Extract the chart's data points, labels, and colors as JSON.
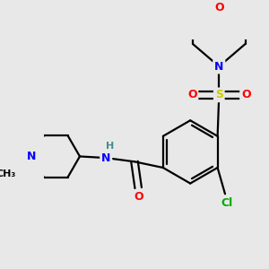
{
  "background_color": "#e8e8e8",
  "atom_colors": {
    "C": "#000000",
    "N": "#0000ff",
    "O": "#ff0000",
    "S": "#cccc00",
    "Cl": "#00aa00",
    "H": "#4a8a8a"
  },
  "bond_color": "#000000",
  "bond_width": 1.6,
  "figsize": [
    3.0,
    3.0
  ],
  "dpi": 100
}
